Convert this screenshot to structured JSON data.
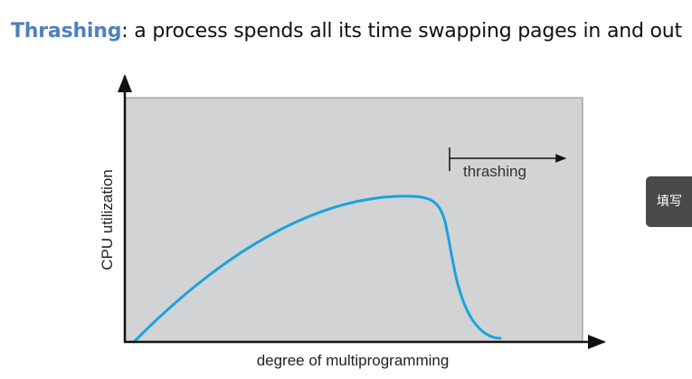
{
  "headline": {
    "term": "Thrashing",
    "rest": ": a process spends all its time swapping pages in and out"
  },
  "diagram": {
    "y_axis_label": "CPU utilization",
    "x_axis_label": "degree of multiprogramming",
    "region_label": "thrashing"
  },
  "side_widget": {
    "label": "填写"
  },
  "colors": {
    "term": "#4f81bd",
    "plot_background": "#d1d3d4",
    "curve": "#1ba3dd",
    "axis": "#111111"
  }
}
